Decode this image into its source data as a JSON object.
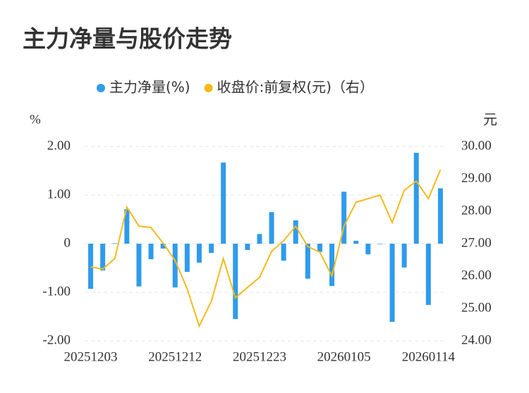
{
  "chart_data": {
    "type": "bar-line",
    "title": "主力净量与股价走势",
    "y_label": "%",
    "y2_label": "元",
    "categories": [
      "20251203",
      null,
      null,
      null,
      null,
      null,
      null,
      "20251212",
      null,
      null,
      null,
      null,
      null,
      null,
      "20251223",
      null,
      null,
      null,
      null,
      null,
      null,
      "20260105",
      null,
      null,
      null,
      null,
      null,
      null,
      "20260114",
      null
    ],
    "series": [
      {
        "name": "主力净量(%)",
        "color": "#2f9bec",
        "type": "bar",
        "values": [
          -0.93,
          -0.55,
          0.01,
          0.71,
          -0.88,
          -0.32,
          -0.1,
          -0.9,
          -0.58,
          -0.39,
          -0.19,
          1.67,
          -1.55,
          -0.13,
          0.2,
          0.65,
          -0.35,
          0.48,
          -0.72,
          -0.17,
          -0.87,
          1.07,
          0.06,
          -0.22,
          -0.01,
          -1.61,
          -0.49,
          1.87,
          -1.26,
          1.14
        ]
      },
      {
        "name": "收盘价:前复权(元)（右）",
        "color": "#f5b91c",
        "type": "line",
        "axis": "y2",
        "values": [
          26.28,
          26.22,
          26.54,
          28.13,
          27.54,
          27.5,
          27.02,
          26.48,
          25.61,
          24.46,
          25.22,
          26.54,
          25.33,
          25.65,
          25.96,
          26.76,
          27.09,
          27.54,
          26.91,
          26.74,
          26.0,
          27.54,
          28.28,
          28.39,
          28.5,
          27.65,
          28.65,
          28.93,
          28.39,
          29.28
        ]
      }
    ],
    "ylim": [
      -2,
      2
    ],
    "yticks": [
      {
        "value": -2,
        "label": "-2.00"
      },
      {
        "value": -1,
        "label": "-1.00"
      },
      0,
      {
        "value": 1,
        "label": "1.00"
      },
      {
        "value": 2,
        "label": "2.00"
      }
    ],
    "y2lim": [
      24,
      30
    ],
    "y2ticks": [
      {
        "value": 24,
        "label": "24.00"
      },
      {
        "value": 25,
        "label": "25.00"
      },
      {
        "value": 26,
        "label": "26.00"
      },
      {
        "value": 27,
        "label": "27.00"
      },
      {
        "value": 28,
        "label": "28.00"
      },
      {
        "value": 29,
        "label": "29.00"
      },
      {
        "value": 30,
        "label": "30.00"
      }
    ],
    "grid": true,
    "legend": "top"
  }
}
